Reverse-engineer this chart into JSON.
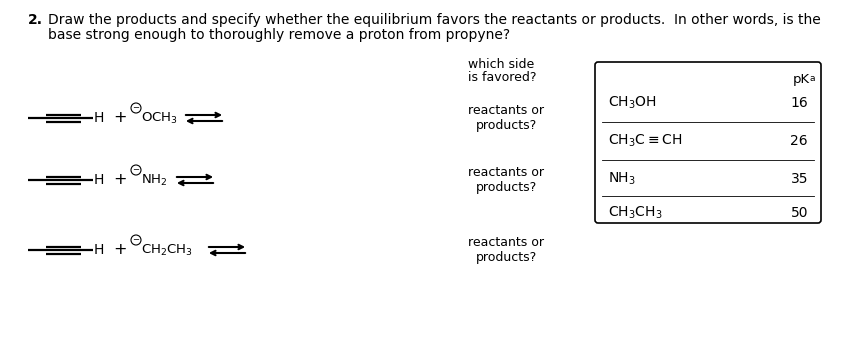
{
  "title_number": "2.",
  "title_text1": "Draw the products and specify whether the equilibrium favors the reactants or products.  In other words, is the",
  "title_text2": "base strong enough to thoroughly remove a proton from propyne?",
  "which_side_line1": "which side",
  "which_side_line2": "is favored?",
  "reactions": [
    {
      "label1": "reactants or",
      "label2": "products?"
    },
    {
      "label1": "reactants or",
      "label2": "products?"
    },
    {
      "label1": "reactants or",
      "label2": "products?"
    }
  ],
  "table_compounds": [
    "CH$_3$OH",
    "CH$_3$C$\\equiv$CH",
    "NH$_3$",
    "CH$_3$CH$_3$"
  ],
  "table_pkas": [
    "16",
    "26",
    "35",
    "50"
  ],
  "bg_color": "#ffffff",
  "text_color": "#000000",
  "font_size_title": 10.0,
  "font_size_body": 9.0,
  "font_size_chem": 9.5
}
